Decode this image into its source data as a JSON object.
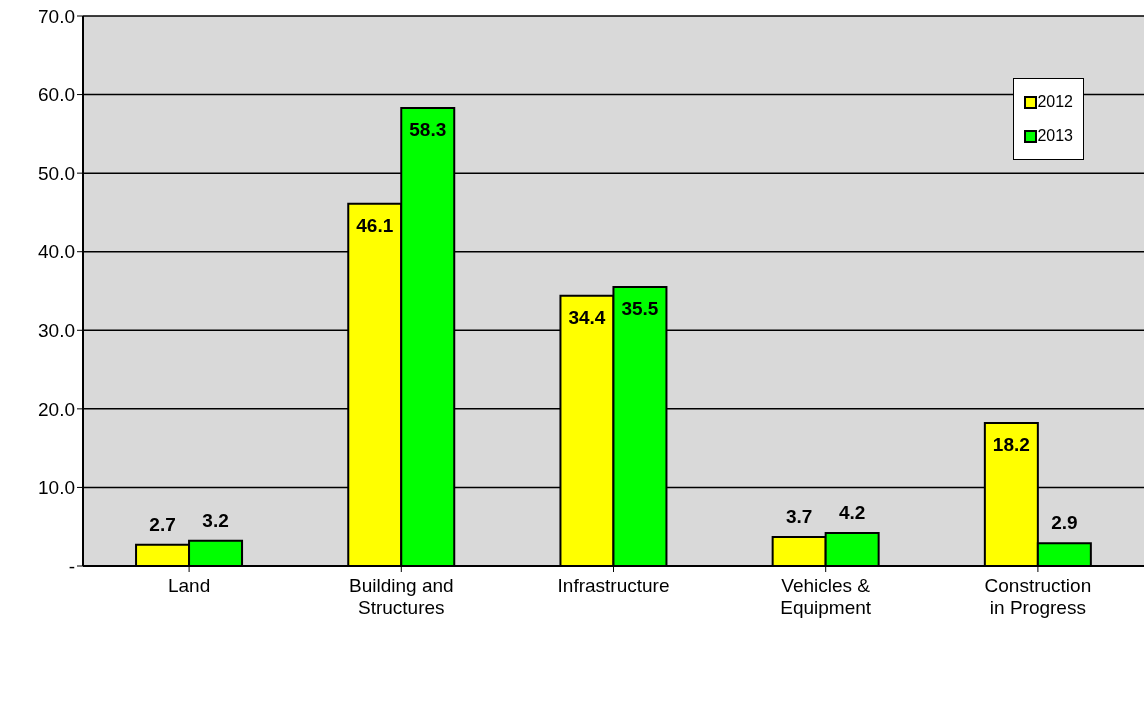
{
  "chart_data": {
    "type": "bar",
    "categories": [
      "Land",
      "Building and Structures",
      "Infrastructure",
      "Vehicles & Equipment",
      "Construction in Progress"
    ],
    "series": [
      {
        "name": "2012",
        "color": "#ffff00",
        "values": [
          2.7,
          46.1,
          34.4,
          3.7,
          18.2
        ]
      },
      {
        "name": "2013",
        "color": "#00ff00",
        "values": [
          3.2,
          58.3,
          35.5,
          4.2,
          2.9
        ]
      }
    ],
    "ylim": [
      0,
      70
    ],
    "yticks": [
      {
        "value": 0,
        "label": "-"
      },
      {
        "value": 10,
        "label": "10.0"
      },
      {
        "value": 20,
        "label": "20.0"
      },
      {
        "value": 30,
        "label": "30.0"
      },
      {
        "value": 40,
        "label": "40.0"
      },
      {
        "value": 50,
        "label": "50.0"
      },
      {
        "value": 60,
        "label": "60.0"
      },
      {
        "value": 70,
        "label": "70.0"
      }
    ],
    "grid": "y",
    "legend": "top right",
    "data_labels": true
  }
}
